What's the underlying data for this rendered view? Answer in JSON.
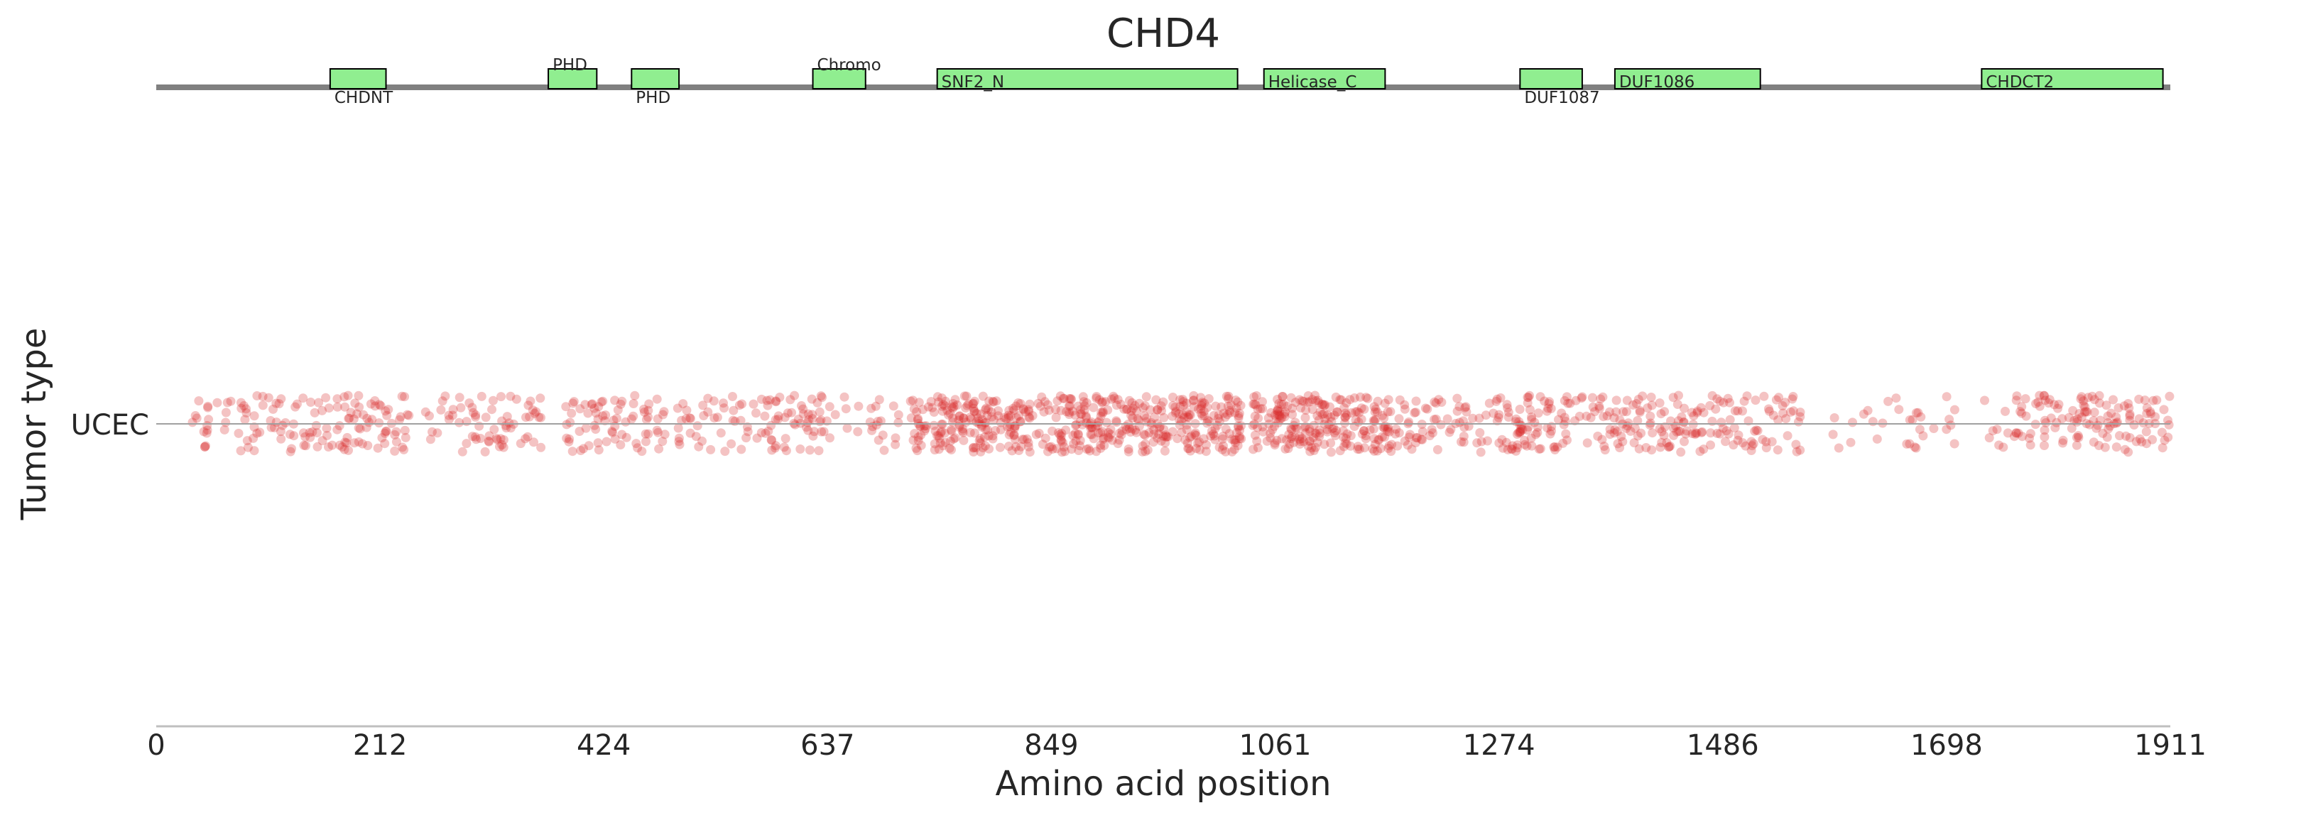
{
  "chart_data": {
    "type": "scatter",
    "title": "CHD4",
    "xlabel": "Amino acid position",
    "ylabel": "Tumor type",
    "xlim": [
      0,
      1911
    ],
    "x_ticks": [
      "0",
      "212",
      "424",
      "637",
      "849",
      "1061",
      "1274",
      "1486",
      "1698",
      "1911"
    ],
    "categories": [
      "UCEC"
    ],
    "grid": false,
    "colors": {
      "point": "#d62728",
      "domain_fill": "#90ee90",
      "domain_stroke": "#000000",
      "backbone": "#808080",
      "axis": "#bfbfbf",
      "category_line": "#a0a0a0"
    },
    "domains": [
      {
        "name": "CHDNT",
        "start": 165,
        "end": 218,
        "label_pos": "below"
      },
      {
        "name": "PHD",
        "start": 372,
        "end": 418,
        "label_pos": "above"
      },
      {
        "name": "PHD",
        "start": 451,
        "end": 496,
        "label_pos": "below"
      },
      {
        "name": "Chromo",
        "start": 623,
        "end": 673,
        "label_pos": "above"
      },
      {
        "name": "SNF2_N",
        "start": 741,
        "end": 1026,
        "label_pos": "inside"
      },
      {
        "name": "Helicase_C",
        "start": 1051,
        "end": 1166,
        "label_pos": "inside"
      },
      {
        "name": "DUF1087",
        "start": 1294,
        "end": 1353,
        "label_pos": "below"
      },
      {
        "name": "DUF1086",
        "start": 1384,
        "end": 1522,
        "label_pos": "inside"
      },
      {
        "name": "CHDCT2",
        "start": 1732,
        "end": 1904,
        "label_pos": "inside"
      }
    ],
    "series": [
      {
        "category": "UCEC",
        "mutation_density": [
          {
            "start": 30,
            "end": 60,
            "density": 0.5
          },
          {
            "start": 60,
            "end": 120,
            "density": 0.6
          },
          {
            "start": 120,
            "end": 170,
            "density": 0.6
          },
          {
            "start": 170,
            "end": 240,
            "density": 0.9
          },
          {
            "start": 255,
            "end": 300,
            "density": 0.45
          },
          {
            "start": 300,
            "end": 365,
            "density": 0.75
          },
          {
            "start": 385,
            "end": 470,
            "density": 0.75
          },
          {
            "start": 475,
            "end": 560,
            "density": 0.55
          },
          {
            "start": 560,
            "end": 640,
            "density": 0.8
          },
          {
            "start": 640,
            "end": 705,
            "density": 0.35
          },
          {
            "start": 715,
            "end": 1030,
            "density": 1.6
          },
          {
            "start": 1040,
            "end": 1170,
            "density": 1.7
          },
          {
            "start": 1170,
            "end": 1280,
            "density": 0.7
          },
          {
            "start": 1280,
            "end": 1360,
            "density": 1.0
          },
          {
            "start": 1360,
            "end": 1560,
            "density": 0.85
          },
          {
            "start": 1590,
            "end": 1625,
            "density": 0.2
          },
          {
            "start": 1625,
            "end": 1655,
            "density": 0.2
          },
          {
            "start": 1660,
            "end": 1710,
            "density": 0.35
          },
          {
            "start": 1730,
            "end": 1760,
            "density": 0.25
          },
          {
            "start": 1760,
            "end": 1911,
            "density": 0.85
          }
        ]
      }
    ]
  }
}
